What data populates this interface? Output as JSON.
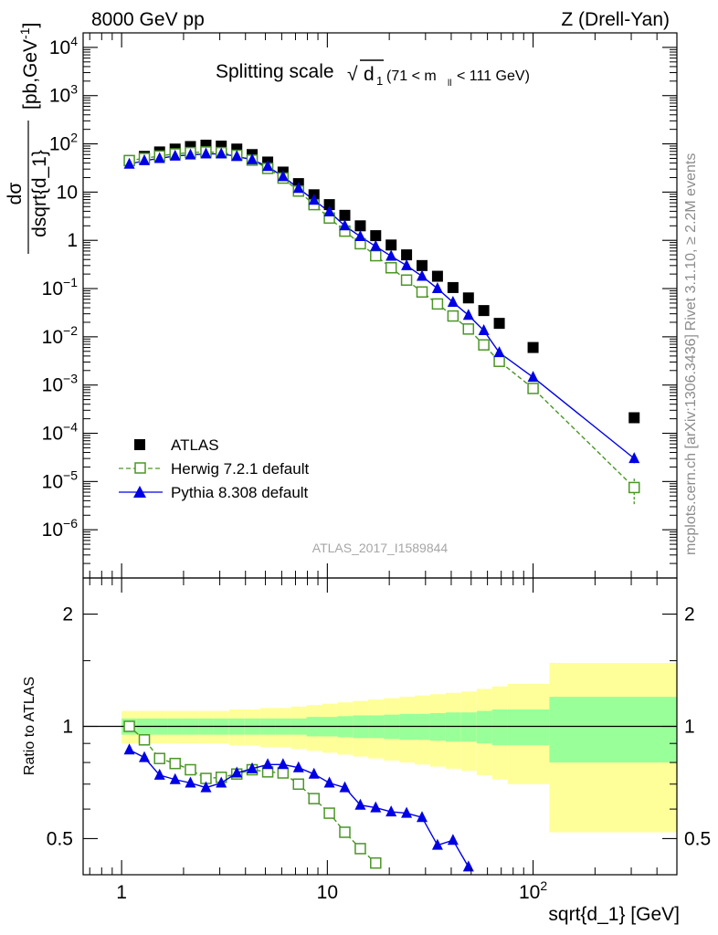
{
  "header": {
    "left": "8000 GeV pp",
    "right": "Z (Drell-Yan)"
  },
  "side_labels": {
    "rivet": "Rivet 3.1.10, ≥ 2.2M events",
    "mcplots": "mcplots.cern.ch [arXiv:1306.3436]"
  },
  "watermark": "ATLAS_2017_I1589844",
  "plot_title": {
    "main": "Splitting scale",
    "sqrt_symbol": "√",
    "sqrt_arg": "d",
    "sqrt_sub": "1",
    "cut_pre": "(71 < m",
    "cut_sub": "ll",
    "cut_post": " < 111 GeV)"
  },
  "colors": {
    "atlas": "#000000",
    "herwig": "#4b9626",
    "pythia": "#0000e6",
    "band_inner": "#99ff99",
    "band_outer": "#ffff99"
  },
  "chart_data": [
    {
      "type": "scatter",
      "panel": "main",
      "title": "Splitting scale √d1 (71 < m_ll < 111 GeV)",
      "xlabel": "sqrt{d_1} [GeV]",
      "ylabel_num": "dσ",
      "ylabel_den": "dsqrt{d_1}",
      "ylabel_unit": "[pb,GeV",
      "ylabel_unit_sup": "-1",
      "ylabel_unit_end": "]",
      "xscale": "log",
      "yscale": "log",
      "xlim": [
        0.65,
        500
      ],
      "ylim": [
        1e-07,
        20000.0
      ],
      "xticks": [
        {
          "v": 1,
          "label": "1"
        },
        {
          "v": 10,
          "label": "10"
        },
        {
          "v": 100,
          "label": "10",
          "sup": "2"
        }
      ],
      "yticks": [
        {
          "v": 1e-06,
          "label": "10",
          "sup": "−6"
        },
        {
          "v": 1e-05,
          "label": "10",
          "sup": "−5"
        },
        {
          "v": 0.0001,
          "label": "10",
          "sup": "−4"
        },
        {
          "v": 0.001,
          "label": "10",
          "sup": "−3"
        },
        {
          "v": 0.01,
          "label": "10",
          "sup": "−2"
        },
        {
          "v": 0.1,
          "label": "10",
          "sup": "−1"
        },
        {
          "v": 1,
          "label": "1"
        },
        {
          "v": 10,
          "label": "10"
        },
        {
          "v": 100,
          "label": "10",
          "sup": "2"
        },
        {
          "v": 1000,
          "label": "10",
          "sup": "3"
        },
        {
          "v": 10000,
          "label": "10",
          "sup": "4"
        }
      ],
      "legend_position": "lower-left",
      "series": [
        {
          "name": "ATLAS",
          "marker": "square-filled",
          "x": [
            1.09,
            1.29,
            1.53,
            1.82,
            2.16,
            2.57,
            3.05,
            3.63,
            4.31,
            5.13,
            6.09,
            7.24,
            8.61,
            10.23,
            12.16,
            14.46,
            17.18,
            20.42,
            24.27,
            28.85,
            34.3,
            40.8,
            48.5,
            57.6,
            68.5,
            100.0,
            310.0
          ],
          "y": [
            45,
            55,
            68,
            78,
            88,
            94,
            90,
            78,
            60,
            42,
            26,
            15,
            8.8,
            5.5,
            3.3,
            2.0,
            1.25,
            0.8,
            0.5,
            0.3,
            0.18,
            0.105,
            0.064,
            0.035,
            0.019,
            0.006,
            0.00021
          ]
        },
        {
          "name": "Herwig 7.2.1 default",
          "marker": "square-open",
          "line": "dashed",
          "x": [
            1.09,
            1.29,
            1.53,
            1.82,
            2.16,
            2.57,
            3.05,
            3.63,
            4.31,
            5.13,
            6.09,
            7.24,
            8.61,
            10.23,
            12.16,
            14.46,
            17.18,
            20.42,
            24.27,
            28.85,
            34.3,
            40.8,
            48.5,
            57.6,
            68.5,
            100.0,
            310.0
          ],
          "y": [
            45,
            50,
            56,
            62,
            66,
            68,
            66,
            58,
            46,
            31,
            19.5,
            10.5,
            5.5,
            2.9,
            1.55,
            0.85,
            0.48,
            0.27,
            0.15,
            0.085,
            0.048,
            0.027,
            0.0145,
            0.0068,
            0.0031,
            0.00085,
            7.5e-06
          ]
        },
        {
          "name": "Pythia 8.308 default",
          "marker": "triangle-filled",
          "line": "solid",
          "x": [
            1.09,
            1.29,
            1.53,
            1.82,
            2.16,
            2.57,
            3.05,
            3.63,
            4.31,
            5.13,
            6.09,
            7.24,
            8.61,
            10.23,
            12.16,
            14.46,
            17.18,
            20.42,
            24.27,
            28.85,
            34.3,
            40.8,
            48.5,
            57.6,
            68.5,
            100.0,
            310.0
          ],
          "y": [
            38,
            45,
            50,
            56,
            59,
            62,
            62,
            55,
            47,
            34,
            21,
            12,
            6.8,
            3.9,
            2.0,
            1.2,
            0.75,
            0.47,
            0.3,
            0.18,
            0.1,
            0.052,
            0.028,
            0.0135,
            0.0047,
            0.00145,
            3e-05
          ]
        }
      ]
    },
    {
      "type": "line",
      "panel": "ratio",
      "ylabel": "Ratio to ATLAS",
      "xlabel": "sqrt{d_1} [GeV]",
      "xscale": "log",
      "yscale": "log",
      "xlim": [
        0.65,
        500
      ],
      "ylim": [
        0.4,
        2.5
      ],
      "yticks": [
        {
          "v": 0.5,
          "label": "0.5"
        },
        {
          "v": 1,
          "label": "1"
        },
        {
          "v": 2,
          "label": "2"
        }
      ],
      "band_edges": [
        1.0,
        1.18,
        1.4,
        1.67,
        1.98,
        2.36,
        2.8,
        3.33,
        3.96,
        4.71,
        5.6,
        6.66,
        7.92,
        9.42,
        11.2,
        13.3,
        15.8,
        18.8,
        22.4,
        26.6,
        31.6,
        37.6,
        44.7,
        53.2,
        63.2,
        75.2,
        120,
        500
      ],
      "band_inner": [
        0.05,
        0.05,
        0.05,
        0.05,
        0.05,
        0.05,
        0.05,
        0.05,
        0.05,
        0.05,
        0.05,
        0.05,
        0.06,
        0.06,
        0.065,
        0.07,
        0.07,
        0.075,
        0.08,
        0.08,
        0.085,
        0.09,
        0.09,
        0.1,
        0.11,
        0.11,
        0.2
      ],
      "band_outer": [
        0.1,
        0.1,
        0.1,
        0.1,
        0.1,
        0.1,
        0.1,
        0.11,
        0.11,
        0.12,
        0.12,
        0.13,
        0.14,
        0.15,
        0.16,
        0.17,
        0.18,
        0.19,
        0.2,
        0.21,
        0.22,
        0.23,
        0.24,
        0.26,
        0.28,
        0.3,
        0.48
      ],
      "series": [
        {
          "name": "Herwig 7.2.1 default",
          "x": [
            1.09,
            1.29,
            1.53,
            1.82,
            2.16,
            2.57,
            3.05,
            3.63,
            4.31,
            5.13,
            6.09,
            7.24,
            8.61,
            10.23,
            12.16,
            14.46,
            17.18
          ],
          "y": [
            1.0,
            0.92,
            0.82,
            0.795,
            0.765,
            0.725,
            0.73,
            0.745,
            0.765,
            0.755,
            0.75,
            0.7,
            0.64,
            0.585,
            0.52,
            0.47,
            0.43
          ]
        },
        {
          "name": "Pythia 8.308 default",
          "x": [
            1.09,
            1.29,
            1.53,
            1.82,
            2.16,
            2.57,
            3.05,
            3.63,
            4.31,
            5.13,
            6.09,
            7.24,
            8.61,
            10.23,
            12.16,
            14.46,
            17.18,
            20.42,
            24.27,
            28.85,
            34.3,
            40.8,
            48.5
          ],
          "y": [
            0.865,
            0.825,
            0.74,
            0.72,
            0.705,
            0.685,
            0.705,
            0.75,
            0.77,
            0.79,
            0.79,
            0.775,
            0.745,
            0.705,
            0.685,
            0.615,
            0.605,
            0.59,
            0.585,
            0.57,
            0.48,
            0.495,
            0.42
          ]
        }
      ]
    }
  ],
  "legend": [
    {
      "label": "ATLAS"
    },
    {
      "label": "Herwig 7.2.1 default"
    },
    {
      "label": "Pythia 8.308 default"
    }
  ]
}
